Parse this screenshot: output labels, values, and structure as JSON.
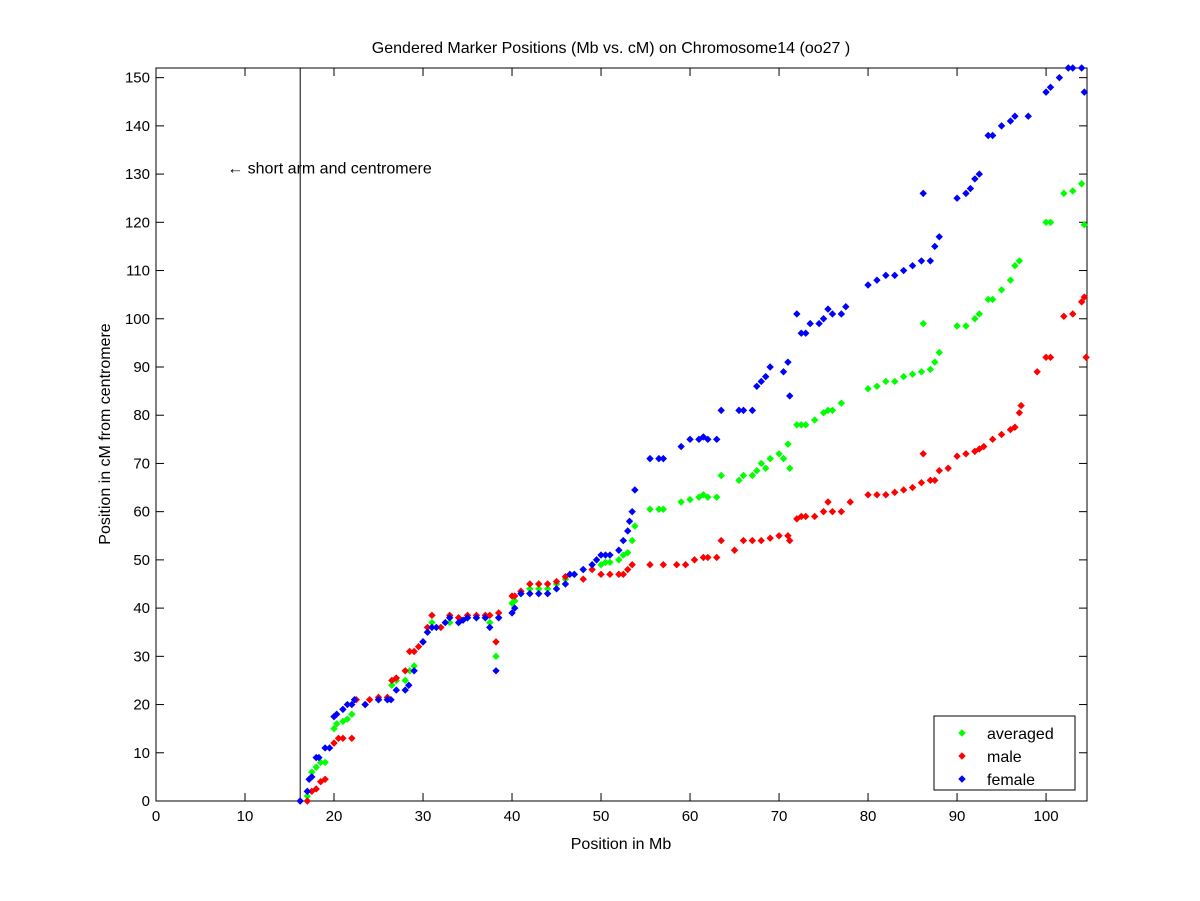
{
  "chart_data": {
    "type": "scatter",
    "title": "Gendered Marker Positions (Mb vs. cM) on Chromosome14 (oo27 )",
    "xlabel": "Position in Mb",
    "ylabel": "Position in cM from centromere",
    "xlim": [
      0,
      104.6
    ],
    "ylim": [
      0,
      152
    ],
    "xticks": [
      0,
      10,
      20,
      30,
      40,
      50,
      60,
      70,
      80,
      90,
      100
    ],
    "yticks": [
      0,
      10,
      20,
      30,
      40,
      50,
      60,
      70,
      80,
      90,
      100,
      110,
      120,
      130,
      140,
      150
    ],
    "grid": false,
    "legend_position": "bottom-right",
    "annotation": {
      "text": "← short arm and centromere",
      "x": 8,
      "y": 131
    },
    "centromere_line_x": 16.2,
    "series": [
      {
        "name": "averaged",
        "color": "#00ff00",
        "points": [
          [
            17,
            1
          ],
          [
            17.5,
            6
          ],
          [
            18,
            7
          ],
          [
            18.5,
            8
          ],
          [
            19,
            8
          ],
          [
            20,
            15
          ],
          [
            20.3,
            16
          ],
          [
            21,
            16.5
          ],
          [
            21.5,
            17
          ],
          [
            22,
            18
          ],
          [
            23.5,
            20
          ],
          [
            25,
            21
          ],
          [
            26,
            21
          ],
          [
            26.5,
            24
          ],
          [
            27,
            25
          ],
          [
            28,
            25
          ],
          [
            28.5,
            27
          ],
          [
            29,
            28
          ],
          [
            30,
            33
          ],
          [
            30.5,
            35
          ],
          [
            31,
            37
          ],
          [
            32,
            36
          ],
          [
            33,
            37
          ],
          [
            34,
            37
          ],
          [
            35,
            38
          ],
          [
            36,
            38
          ],
          [
            37,
            38
          ],
          [
            37.5,
            37
          ],
          [
            38.2,
            30
          ],
          [
            38.5,
            38
          ],
          [
            40,
            41
          ],
          [
            40.3,
            41.5
          ],
          [
            41,
            43
          ],
          [
            42,
            44
          ],
          [
            43,
            44
          ],
          [
            44,
            44
          ],
          [
            45,
            45
          ],
          [
            46,
            46
          ],
          [
            47,
            47
          ],
          [
            48,
            48
          ],
          [
            49,
            49
          ],
          [
            50,
            49
          ],
          [
            50.5,
            49.5
          ],
          [
            51,
            49.5
          ],
          [
            52,
            50
          ],
          [
            52.5,
            51
          ],
          [
            53,
            51.5
          ],
          [
            53.5,
            54
          ],
          [
            53.8,
            57
          ],
          [
            55.5,
            60.5
          ],
          [
            56.5,
            60.5
          ],
          [
            57,
            60.5
          ],
          [
            59,
            62
          ],
          [
            60,
            62.5
          ],
          [
            61,
            63
          ],
          [
            61.5,
            63.5
          ],
          [
            62,
            63
          ],
          [
            63,
            63
          ],
          [
            63.5,
            67.5
          ],
          [
            65.5,
            66.5
          ],
          [
            66,
            67.5
          ],
          [
            67,
            67.5
          ],
          [
            67.5,
            68.5
          ],
          [
            68,
            70
          ],
          [
            68.5,
            69
          ],
          [
            69,
            71
          ],
          [
            70,
            72
          ],
          [
            70.5,
            71
          ],
          [
            71,
            74
          ],
          [
            71.2,
            69
          ],
          [
            72,
            78
          ],
          [
            72.5,
            78
          ],
          [
            73,
            78
          ],
          [
            74,
            79
          ],
          [
            75,
            80.5
          ],
          [
            75.5,
            81
          ],
          [
            76,
            81
          ],
          [
            77,
            82.5
          ],
          [
            80,
            85.5
          ],
          [
            81,
            86
          ],
          [
            82,
            87
          ],
          [
            83,
            87
          ],
          [
            84,
            88
          ],
          [
            85,
            88.5
          ],
          [
            86,
            89
          ],
          [
            86.2,
            99
          ],
          [
            87,
            89.5
          ],
          [
            87.5,
            91
          ],
          [
            88,
            93
          ],
          [
            90,
            98.5
          ],
          [
            91,
            98.5
          ],
          [
            92,
            100
          ],
          [
            92.5,
            101
          ],
          [
            93.5,
            104
          ],
          [
            94,
            104
          ],
          [
            95,
            106
          ],
          [
            96,
            108
          ],
          [
            96.5,
            111
          ],
          [
            97,
            112
          ],
          [
            100,
            120
          ],
          [
            100.5,
            120
          ],
          [
            102,
            126
          ],
          [
            103,
            126.5
          ],
          [
            104,
            128
          ],
          [
            104.3,
            119.5
          ]
        ]
      },
      {
        "name": "male",
        "color": "#ff0000",
        "points": [
          [
            17,
            0
          ],
          [
            17.5,
            2
          ],
          [
            18,
            2.5
          ],
          [
            18.5,
            4
          ],
          [
            19,
            4.5
          ],
          [
            20,
            12
          ],
          [
            20.5,
            13
          ],
          [
            21,
            13
          ],
          [
            22,
            13
          ],
          [
            22.5,
            21
          ],
          [
            23.5,
            20
          ],
          [
            24,
            21
          ],
          [
            25,
            21.5
          ],
          [
            26,
            21.5
          ],
          [
            26.5,
            25
          ],
          [
            27,
            25.5
          ],
          [
            28,
            27
          ],
          [
            28.5,
            31
          ],
          [
            29,
            31
          ],
          [
            29.5,
            32
          ],
          [
            30,
            33
          ],
          [
            30.5,
            36
          ],
          [
            31,
            38.5
          ],
          [
            32,
            36
          ],
          [
            33,
            38.5
          ],
          [
            34,
            38
          ],
          [
            35,
            38.5
          ],
          [
            36,
            38.5
          ],
          [
            37,
            38.5
          ],
          [
            37.5,
            38.5
          ],
          [
            38.2,
            33
          ],
          [
            38.5,
            39
          ],
          [
            40,
            42.5
          ],
          [
            40.3,
            42.5
          ],
          [
            41,
            43.5
          ],
          [
            42,
            45
          ],
          [
            43,
            45
          ],
          [
            44,
            45
          ],
          [
            45,
            45.5
          ],
          [
            46,
            46.5
          ],
          [
            48,
            46
          ],
          [
            49,
            48
          ],
          [
            50,
            47
          ],
          [
            51,
            47
          ],
          [
            52,
            47
          ],
          [
            52.5,
            47
          ],
          [
            53,
            48
          ],
          [
            53.5,
            49
          ],
          [
            55.5,
            49
          ],
          [
            57,
            49
          ],
          [
            58.5,
            49
          ],
          [
            59.5,
            49
          ],
          [
            60.5,
            50
          ],
          [
            61.5,
            50.5
          ],
          [
            62,
            50.5
          ],
          [
            63,
            50.5
          ],
          [
            63.5,
            54
          ],
          [
            65,
            52
          ],
          [
            66,
            54
          ],
          [
            67,
            54
          ],
          [
            68,
            54
          ],
          [
            69,
            54.5
          ],
          [
            70,
            55
          ],
          [
            71,
            55
          ],
          [
            71.2,
            54
          ],
          [
            72,
            58.5
          ],
          [
            72.5,
            59
          ],
          [
            73,
            59
          ],
          [
            74,
            59
          ],
          [
            75,
            60
          ],
          [
            75.5,
            62
          ],
          [
            76,
            60
          ],
          [
            77,
            60
          ],
          [
            78,
            62
          ],
          [
            80,
            63.5
          ],
          [
            81,
            63.5
          ],
          [
            82,
            63.5
          ],
          [
            83,
            64
          ],
          [
            84,
            64.5
          ],
          [
            85,
            65
          ],
          [
            86,
            66
          ],
          [
            86.2,
            72
          ],
          [
            87,
            66.5
          ],
          [
            87.5,
            66.5
          ],
          [
            88,
            68.5
          ],
          [
            89,
            69
          ],
          [
            90,
            71.5
          ],
          [
            91,
            72
          ],
          [
            92,
            72.5
          ],
          [
            92.5,
            73
          ],
          [
            93,
            73.5
          ],
          [
            94,
            75
          ],
          [
            95,
            76
          ],
          [
            96,
            77
          ],
          [
            96.5,
            77.5
          ],
          [
            97,
            80.5
          ],
          [
            97.2,
            82
          ],
          [
            99,
            89
          ],
          [
            100,
            92
          ],
          [
            100.5,
            92
          ],
          [
            102,
            100.5
          ],
          [
            103,
            101
          ],
          [
            104,
            103.5
          ],
          [
            104.3,
            104.5
          ],
          [
            104.5,
            92
          ]
        ]
      },
      {
        "name": "female",
        "color": "#0000ff",
        "points": [
          [
            16.2,
            0
          ],
          [
            17,
            2
          ],
          [
            17.2,
            4.5
          ],
          [
            17.5,
            5
          ],
          [
            18,
            9
          ],
          [
            18.3,
            9
          ],
          [
            19,
            11
          ],
          [
            19.5,
            11
          ],
          [
            20,
            17.5
          ],
          [
            20.3,
            18
          ],
          [
            21,
            19
          ],
          [
            21.5,
            20
          ],
          [
            22,
            20
          ],
          [
            22.3,
            21
          ],
          [
            23.5,
            20
          ],
          [
            25,
            21
          ],
          [
            26,
            21
          ],
          [
            26.4,
            21
          ],
          [
            27,
            23
          ],
          [
            28,
            23
          ],
          [
            28.4,
            24
          ],
          [
            29,
            27
          ],
          [
            30,
            33
          ],
          [
            30.5,
            35
          ],
          [
            31,
            36
          ],
          [
            31.5,
            36
          ],
          [
            32.5,
            37
          ],
          [
            33,
            38
          ],
          [
            34,
            37
          ],
          [
            34.5,
            37.5
          ],
          [
            35,
            38
          ],
          [
            36,
            38
          ],
          [
            37,
            38
          ],
          [
            37.5,
            36
          ],
          [
            38.2,
            27
          ],
          [
            38.5,
            38
          ],
          [
            40,
            39
          ],
          [
            40.3,
            40
          ],
          [
            41,
            43
          ],
          [
            42,
            43
          ],
          [
            43,
            43
          ],
          [
            44,
            43
          ],
          [
            45,
            44
          ],
          [
            46,
            45
          ],
          [
            46.5,
            47
          ],
          [
            47,
            47
          ],
          [
            48,
            48
          ],
          [
            49,
            49
          ],
          [
            49.5,
            50
          ],
          [
            50,
            51
          ],
          [
            50.5,
            51
          ],
          [
            51,
            51
          ],
          [
            52,
            52
          ],
          [
            52.5,
            54
          ],
          [
            53,
            56
          ],
          [
            53.2,
            58
          ],
          [
            53.5,
            60
          ],
          [
            53.8,
            64.5
          ],
          [
            55.5,
            71
          ],
          [
            56.5,
            71
          ],
          [
            57,
            71
          ],
          [
            59,
            73.5
          ],
          [
            60,
            75
          ],
          [
            61,
            75
          ],
          [
            61.5,
            75.5
          ],
          [
            62,
            75
          ],
          [
            63,
            75
          ],
          [
            63.5,
            81
          ],
          [
            65.5,
            81
          ],
          [
            66,
            81
          ],
          [
            67,
            81
          ],
          [
            67.5,
            86
          ],
          [
            68,
            87
          ],
          [
            68.5,
            88
          ],
          [
            69,
            90
          ],
          [
            70.5,
            89
          ],
          [
            71,
            91
          ],
          [
            71.2,
            84
          ],
          [
            72,
            101
          ],
          [
            72.5,
            97
          ],
          [
            73,
            97
          ],
          [
            73.5,
            99
          ],
          [
            74.5,
            99
          ],
          [
            75,
            100
          ],
          [
            75.5,
            102
          ],
          [
            76,
            101
          ],
          [
            77,
            101
          ],
          [
            77.5,
            102.5
          ],
          [
            80,
            107
          ],
          [
            81,
            108
          ],
          [
            82,
            109
          ],
          [
            83,
            109
          ],
          [
            84,
            110
          ],
          [
            85,
            111
          ],
          [
            86,
            112
          ],
          [
            86.2,
            126
          ],
          [
            87,
            112
          ],
          [
            87.5,
            115
          ],
          [
            88,
            117
          ],
          [
            90,
            125
          ],
          [
            91,
            126
          ],
          [
            91.5,
            127
          ],
          [
            92,
            129
          ],
          [
            92.5,
            130
          ],
          [
            93.5,
            138
          ],
          [
            94,
            138
          ],
          [
            95,
            140
          ],
          [
            96,
            141
          ],
          [
            96.5,
            142
          ],
          [
            98,
            142
          ],
          [
            100,
            147
          ],
          [
            100.5,
            148
          ],
          [
            101.5,
            150
          ],
          [
            102.5,
            152
          ],
          [
            103,
            152
          ],
          [
            104,
            152
          ],
          [
            104.3,
            147
          ]
        ]
      }
    ]
  }
}
